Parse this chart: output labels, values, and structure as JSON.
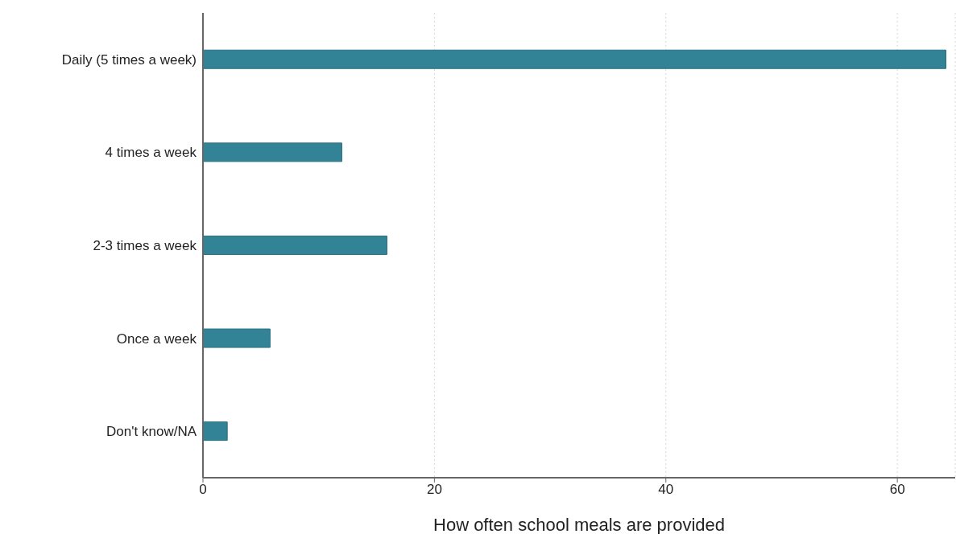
{
  "chart_data": {
    "type": "bar",
    "orientation": "horizontal",
    "xlabel": "How often school meals are provided",
    "categories": [
      "Daily (5 times a week)",
      "4 times a week",
      "2-3 times a week",
      "Once a week",
      "Don't know/NA"
    ],
    "values": [
      64.2,
      12.0,
      15.9,
      5.8,
      2.1
    ],
    "color": "#338397",
    "xlim": [
      0,
      65
    ],
    "xticks": [
      0,
      20,
      40,
      60
    ],
    "grid": "x"
  }
}
